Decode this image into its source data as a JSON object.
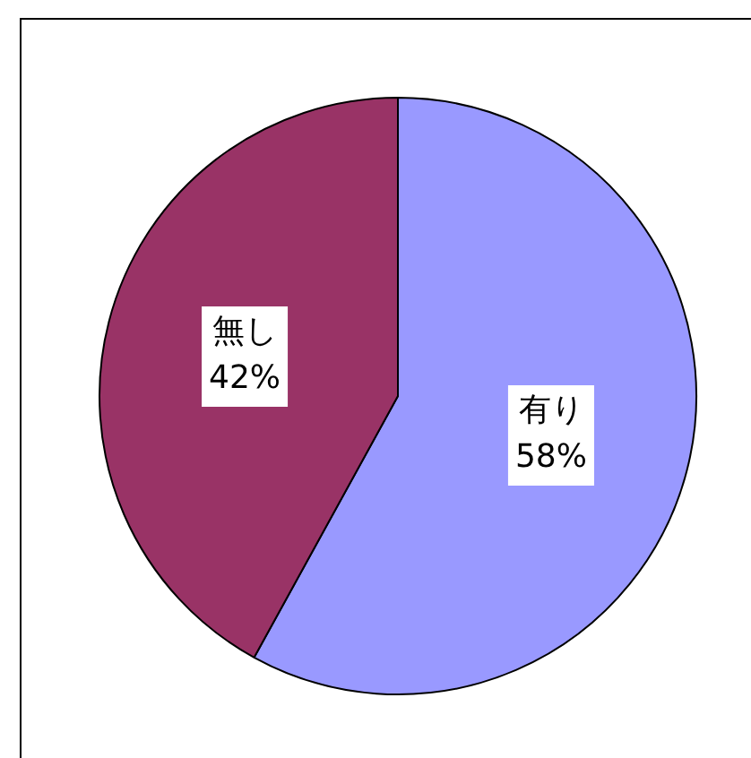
{
  "chart_data": {
    "type": "pie",
    "categories": [
      "有り",
      "無し"
    ],
    "values": [
      58,
      42
    ],
    "colors": [
      "#9999ff",
      "#993366"
    ],
    "value_labels": [
      "58%",
      "42%"
    ],
    "legend": false
  }
}
